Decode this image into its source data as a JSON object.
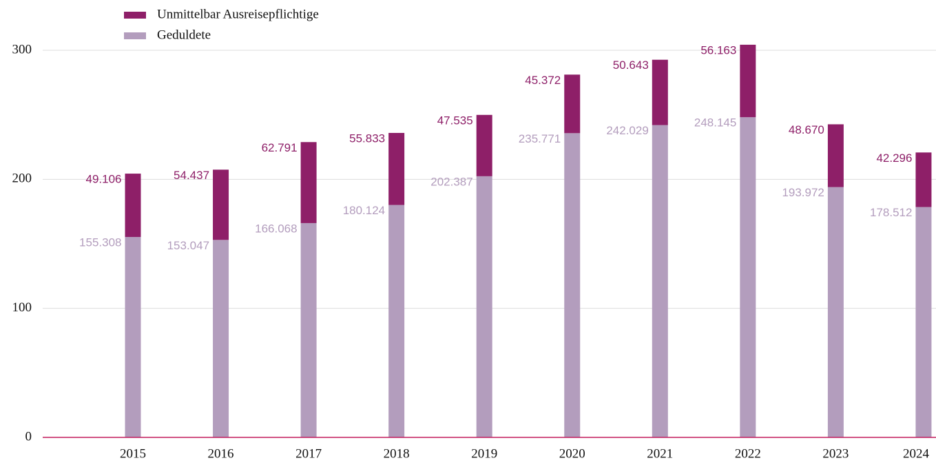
{
  "chart_data": {
    "type": "stacked_bar",
    "categories": [
      "2015",
      "2016",
      "2017",
      "2018",
      "2019",
      "2020",
      "2021",
      "2022",
      "2023",
      "2024"
    ],
    "series": [
      {
        "name": "Geduldete",
        "color": "#b39dbd",
        "values": [
          155.308,
          153.047,
          166.068,
          180.124,
          202.387,
          235.771,
          242.029,
          248.145,
          193.972,
          178.512
        ],
        "value_labels": [
          "155.308",
          "153.047",
          "166.068",
          "180.124",
          "202.387",
          "235.771",
          "242.029",
          "248.145",
          "193.972",
          "178.512"
        ]
      },
      {
        "name": "Unmittelbar Ausreisepflichtige",
        "color": "#8e1f68",
        "values": [
          49.106,
          54.437,
          62.791,
          55.833,
          47.535,
          45.372,
          50.643,
          56.163,
          48.67,
          42.296
        ],
        "value_labels": [
          "49.106",
          "54.437",
          "62.791",
          "55.833",
          "47.535",
          "45.372",
          "50.643",
          "56.163",
          "48.670",
          "42.296"
        ]
      }
    ],
    "ylim": [
      0,
      300
    ],
    "yticks": [
      0,
      100,
      200,
      300
    ],
    "grid": true
  }
}
